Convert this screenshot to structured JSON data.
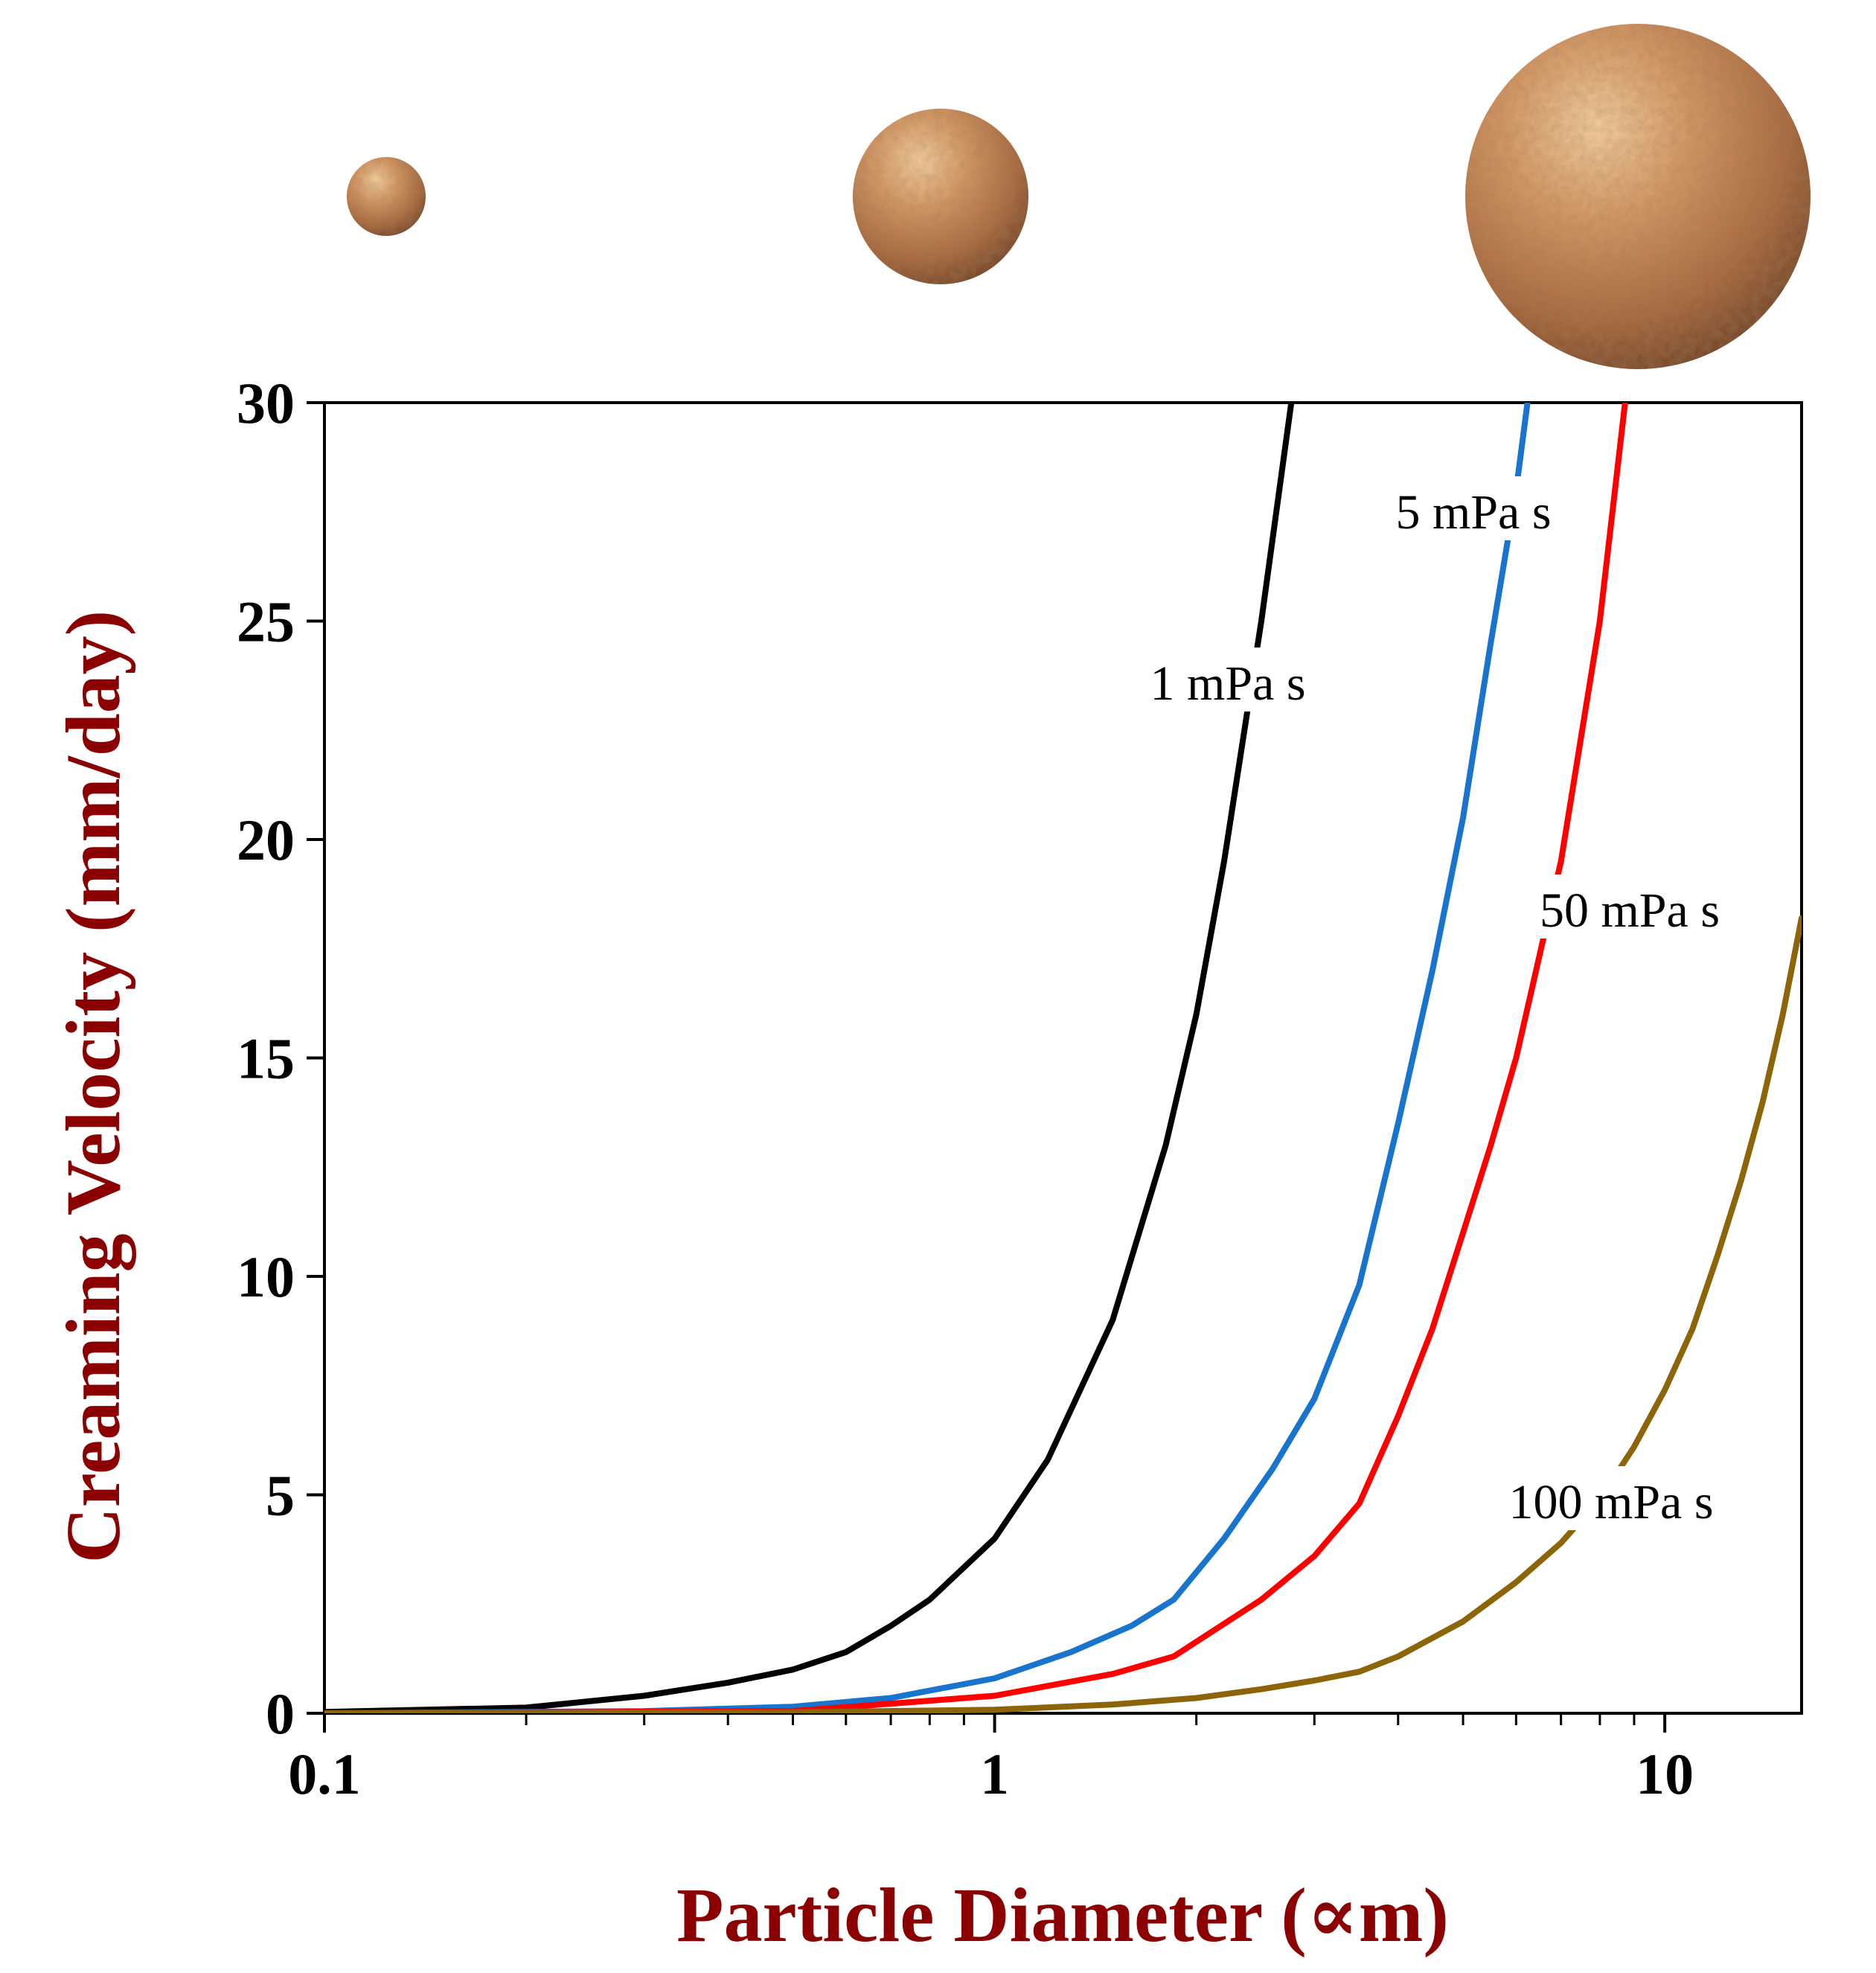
{
  "chart_data": {
    "type": "line",
    "xlabel": "Particle Diameter (∝m)",
    "ylabel": "Creaming Velocity (mm/day)",
    "x_scale": "log",
    "xlim": [
      0.1,
      16
    ],
    "ylim": [
      0,
      30
    ],
    "x_ticks": [
      {
        "value": 0.1,
        "label": "0.1"
      },
      {
        "value": 1,
        "label": "1"
      },
      {
        "value": 10,
        "label": "10"
      }
    ],
    "y_ticks": [
      {
        "value": 0,
        "label": "0"
      },
      {
        "value": 5,
        "label": "5"
      },
      {
        "value": 10,
        "label": "10"
      },
      {
        "value": 15,
        "label": "15"
      },
      {
        "value": 20,
        "label": "20"
      },
      {
        "value": 25,
        "label": "25"
      },
      {
        "value": 30,
        "label": "30"
      }
    ],
    "grid": false,
    "axis_title_color": "#8b0000",
    "series": [
      {
        "name": "1 mPa s",
        "color": "#000000",
        "x": [
          0.1,
          0.2,
          0.3,
          0.4,
          0.5,
          0.6,
          0.7,
          0.8,
          1.0,
          1.2,
          1.5,
          1.8,
          2.0,
          2.2,
          2.5,
          2.8
        ],
        "y": [
          0.03,
          0.13,
          0.4,
          0.7,
          1.0,
          1.4,
          2.0,
          2.6,
          4.0,
          5.8,
          9.0,
          13.0,
          16.0,
          19.5,
          25.0,
          30.5
        ]
      },
      {
        "name": "5 mPa s",
        "color": "#1874cd",
        "x": [
          0.1,
          0.3,
          0.5,
          0.7,
          1.0,
          1.3,
          1.6,
          1.85,
          2.2,
          2.6,
          3.0,
          3.5,
          4.0,
          4.5,
          5.0,
          5.5,
          6.0,
          6.3
        ],
        "y": [
          0.0,
          0.05,
          0.15,
          0.35,
          0.8,
          1.4,
          2.0,
          2.6,
          4.0,
          5.6,
          7.2,
          9.8,
          13.5,
          17.0,
          20.5,
          24.5,
          28.0,
          30.5
        ]
      },
      {
        "name": "50 mPa s",
        "color": "#ff0000",
        "x": [
          0.1,
          0.5,
          1.0,
          1.5,
          1.85,
          2.5,
          3.0,
          3.5,
          4.0,
          4.5,
          5.0,
          5.5,
          6.0,
          7.0,
          8.0,
          8.8
        ],
        "y": [
          0.0,
          0.05,
          0.4,
          0.9,
          1.3,
          2.6,
          3.6,
          4.8,
          6.8,
          8.8,
          11.0,
          13.0,
          15.0,
          19.5,
          25.0,
          30.5
        ]
      },
      {
        "name": "100 mPa s",
        "color": "#8b6508",
        "x": [
          0.1,
          0.5,
          1.0,
          1.5,
          2.0,
          2.5,
          3.0,
          3.5,
          4.0,
          5.0,
          6.0,
          7.0,
          8.0,
          9.0,
          10.0,
          11.0,
          12.0,
          13.0,
          14.0,
          15.0,
          16.0
        ],
        "y": [
          0.0,
          0.02,
          0.08,
          0.2,
          0.35,
          0.55,
          0.75,
          0.95,
          1.3,
          2.1,
          3.0,
          3.9,
          4.9,
          6.1,
          7.4,
          8.8,
          10.5,
          12.2,
          14.0,
          16.0,
          18.2
        ]
      }
    ],
    "annotations": [
      {
        "text": "1 mPa s",
        "series": 0
      },
      {
        "text": "5 mPa s",
        "series": 1
      },
      {
        "text": "50 mPa s",
        "series": 2
      },
      {
        "text": "100 mPa s",
        "series": 3
      }
    ]
  },
  "illustration": {
    "description_icon": "sphere-icon",
    "sphere_color": "#c8814f"
  }
}
